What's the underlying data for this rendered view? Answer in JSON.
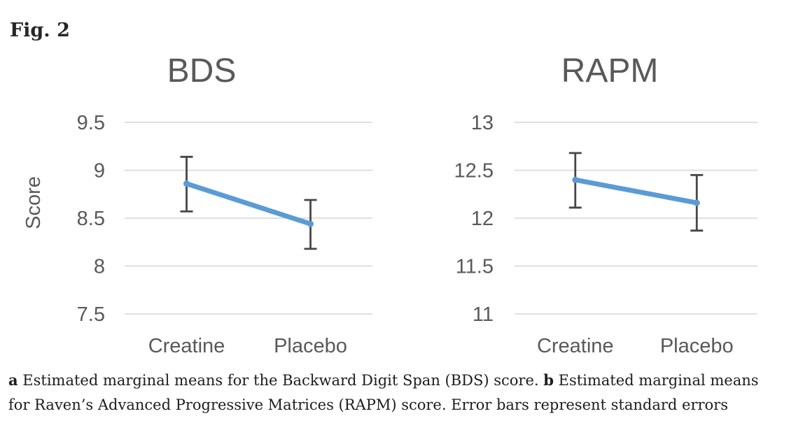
{
  "figure": {
    "label": "Fig. 2"
  },
  "colors": {
    "series_line": "#5B9BD5",
    "error_bar": "#464646",
    "gridline": "#D6D6D6",
    "axis_text": "#595959",
    "caption_text": "#1D1D1D"
  },
  "caption": {
    "a_label": "a",
    "a_text": " Estimated marginal means for the Backward Digit Span (BDS) score. ",
    "b_label": "b",
    "b_text": " Estimated marginal means for Raven’s Advanced Progressive Matrices (RAPM) score. Error bars represent standard errors"
  },
  "chart_data": [
    {
      "type": "line",
      "title": "BDS",
      "xlabel": "",
      "ylabel": "Score",
      "categories": [
        "Creatine",
        "Placebo"
      ],
      "series": [
        {
          "name": "mean",
          "values": [
            8.86,
            8.44
          ]
        }
      ],
      "error_bars": {
        "upper": [
          9.14,
          8.69
        ],
        "lower": [
          8.57,
          8.18
        ]
      },
      "yticks": [
        9.5,
        9,
        8.5,
        8,
        7.5
      ],
      "ylim": [
        7.5,
        9.5
      ],
      "grid": true,
      "legend": false
    },
    {
      "type": "line",
      "title": "RAPM",
      "xlabel": "",
      "ylabel": "",
      "categories": [
        "Creatine",
        "Placebo"
      ],
      "series": [
        {
          "name": "mean",
          "values": [
            12.4,
            12.16
          ]
        }
      ],
      "error_bars": {
        "upper": [
          12.68,
          12.45
        ],
        "lower": [
          12.11,
          11.87
        ]
      },
      "yticks": [
        13,
        12.5,
        12,
        11.5,
        11
      ],
      "ylim": [
        11,
        13
      ],
      "grid": true,
      "legend": false
    }
  ]
}
